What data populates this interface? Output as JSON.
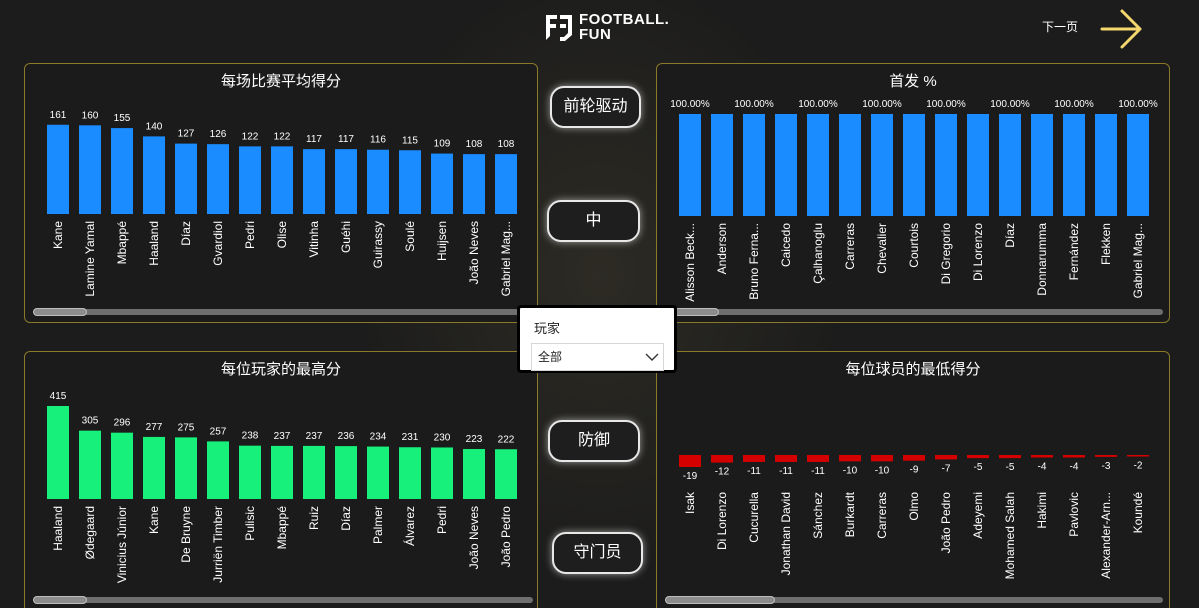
{
  "header": {
    "logo_text_line1": "FOOTBALL.",
    "logo_text_line2": "FUN",
    "next_page_label": "下一页"
  },
  "nav": {
    "forward_label": "前轮驱动",
    "midfield_label": "中",
    "defense_label": "防御",
    "goalkeeper_label": "守门员"
  },
  "slicer": {
    "label": "玩家",
    "selected": "全部"
  },
  "colors": {
    "blue": "#1a8cff",
    "green": "#17f07a",
    "red": "#d40000",
    "panel_border": "#8a7a2a",
    "accent_arrow": "#f5d76e"
  },
  "chart_data": [
    {
      "id": "avg",
      "type": "bar",
      "title": "每场比赛平均得分",
      "categories": [
        "Kane",
        "Lamine Yamal",
        "Mbappé",
        "Haaland",
        "Díaz",
        "Gvardiol",
        "Pedri",
        "Olise",
        "Vitinha",
        "Guéhi",
        "Guirassy",
        "Soulé",
        "Huijsen",
        "João Neves",
        "Gabriel Mag..."
      ],
      "values": [
        161,
        160,
        155,
        140,
        127,
        126,
        122,
        122,
        117,
        117,
        116,
        115,
        109,
        108,
        108
      ],
      "value_labels": [
        "161",
        "160",
        "155",
        "140",
        "127",
        "126",
        "122",
        "122",
        "117",
        "117",
        "116",
        "115",
        "109",
        "108",
        "108"
      ],
      "ylim": [
        0,
        175
      ],
      "color": "#1a8cff",
      "grid": false
    },
    {
      "id": "start",
      "type": "bar",
      "title": "首发 %",
      "categories": [
        "Alisson Beck...",
        "Anderson",
        "Bruno Ferna...",
        "Caicedo",
        "Çalhanoglu",
        "Carreras",
        "Chevalier",
        "Courtois",
        "Di Gregorio",
        "Di Lorenzo",
        "Díaz",
        "Donnarumma",
        "Fernández",
        "Flekken",
        "Gabriel Mag..."
      ],
      "values": [
        100,
        100,
        100,
        100,
        100,
        100,
        100,
        100,
        100,
        100,
        100,
        100,
        100,
        100,
        100
      ],
      "value_labels": [
        "100.00%",
        "",
        "100.00%",
        "",
        "100.00%",
        "",
        "100.00%",
        "",
        "100.00%",
        "",
        "100.00%",
        "",
        "100.00%",
        "",
        "100.00%"
      ],
      "ylim": [
        0,
        100
      ],
      "color": "#1a8cff",
      "grid": false
    },
    {
      "id": "max",
      "type": "bar",
      "title": "每位玩家的最高分",
      "categories": [
        "Haaland",
        "Ødegaard",
        "Vinicius Júnior",
        "Kane",
        "De Bruyne",
        "Jurriën Timber",
        "Pulisic",
        "Mbappé",
        "Ruiz",
        "Díaz",
        "Palmer",
        "Álvarez",
        "Pedri",
        "João Neves",
        "João Pedro"
      ],
      "values": [
        415,
        305,
        296,
        277,
        275,
        257,
        238,
        237,
        237,
        236,
        234,
        231,
        230,
        223,
        222
      ],
      "value_labels": [
        "415",
        "305",
        "296",
        "277",
        "275",
        "257",
        "238",
        "237",
        "237",
        "236",
        "234",
        "231",
        "230",
        "223",
        "222"
      ],
      "ylim": [
        0,
        415
      ],
      "color": "#17f07a",
      "grid": false
    },
    {
      "id": "min",
      "type": "bar",
      "title": "每位球员的最低得分",
      "categories": [
        "Isak",
        "Di Lorenzo",
        "Cucurella",
        "Jonathan David",
        "Sánchez",
        "Burkardt",
        "Carreras",
        "Olmo",
        "João Pedro",
        "Adeyemi",
        "Mohamed Salah",
        "Hakimi",
        "Pavlovic",
        "Alexander-Arn...",
        "Koundé"
      ],
      "values": [
        -19,
        -12,
        -11,
        -11,
        -11,
        -10,
        -10,
        -9,
        -7,
        -5,
        -5,
        -4,
        -4,
        -3,
        -2
      ],
      "value_labels": [
        "-19",
        "-12",
        "-11",
        "-11",
        "-11",
        "-10",
        "-10",
        "-9",
        "-7",
        "-5",
        "-5",
        "-4",
        "-4",
        "-3",
        "-2"
      ],
      "ylim": [
        -19,
        0
      ],
      "color": "#d40000",
      "grid": false
    }
  ]
}
